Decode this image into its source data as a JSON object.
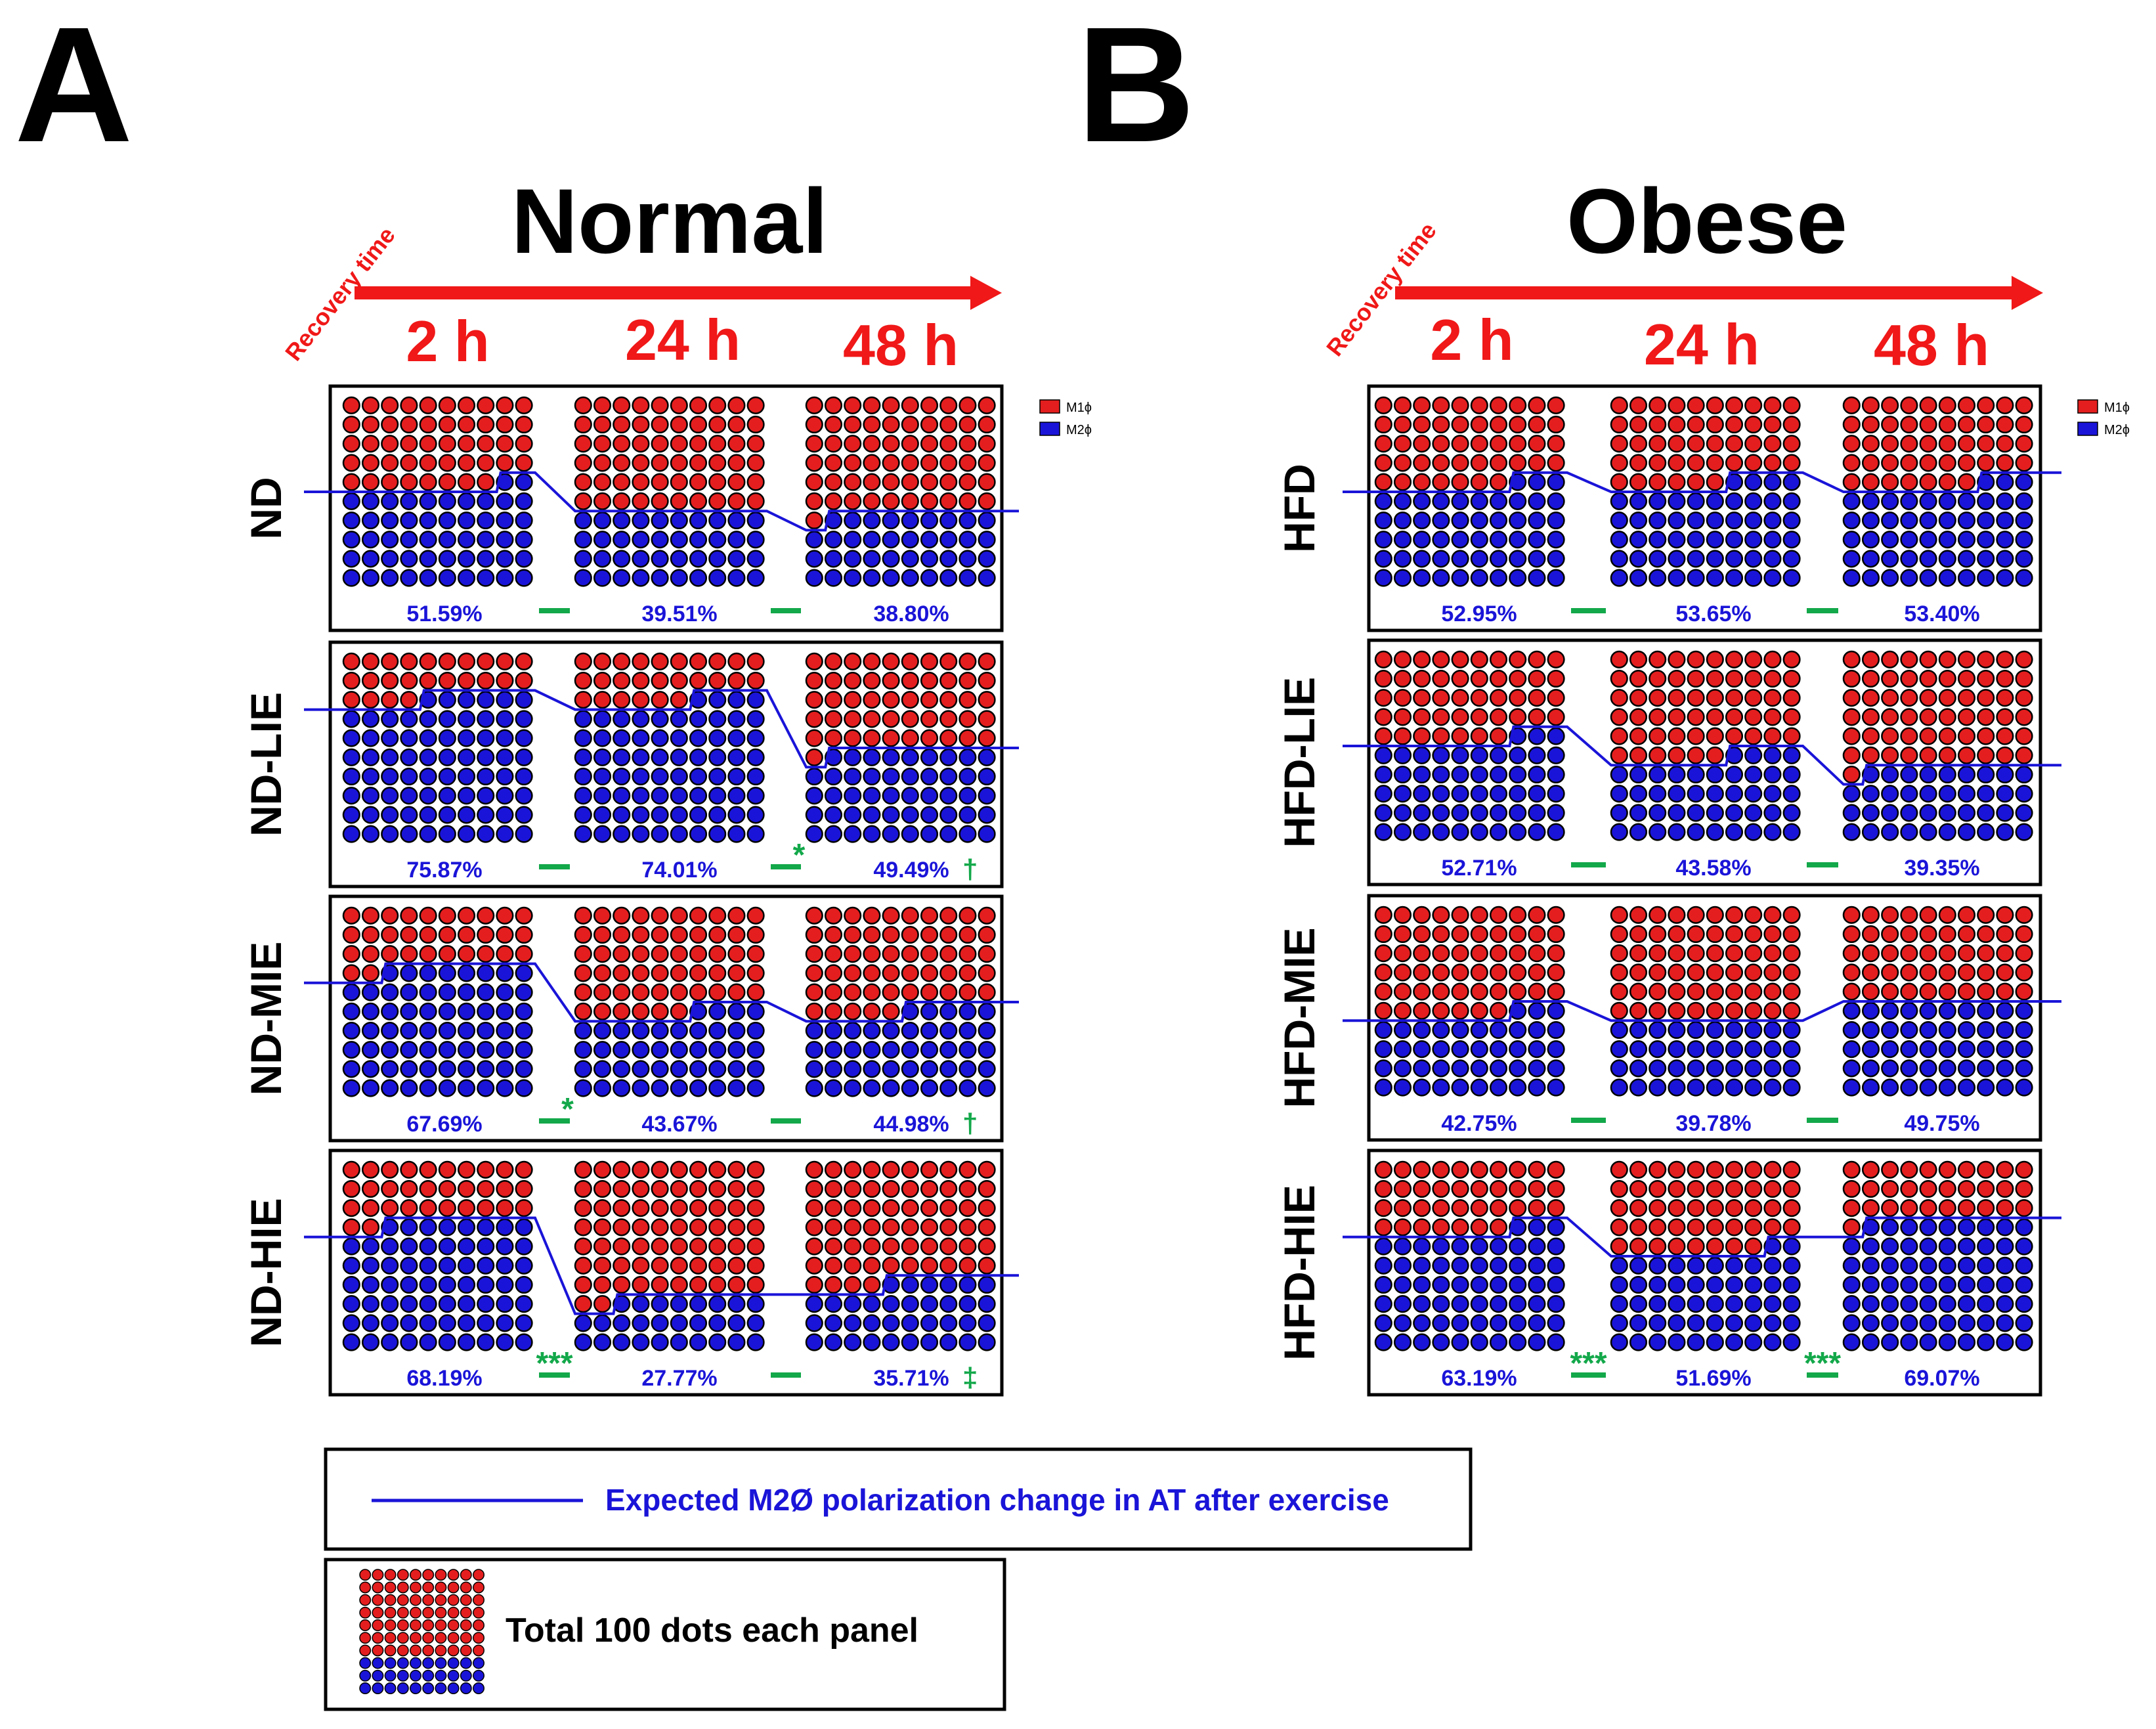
{
  "panel_letters": {
    "a": "A",
    "b": "B"
  },
  "recovery_label": "Recovery time",
  "colors": {
    "m1": "#e41e1e",
    "m2": "#1a14d8",
    "line": "#1a14d8",
    "sig": "#13a84a",
    "red_text": "#f01818",
    "pct_text": "#1a14d8"
  },
  "legend_small": {
    "m1": "M1ϕ",
    "m2": "M2ϕ"
  },
  "legend_line_label": "Expected M2Ø polarization change in AT after exercise",
  "legend_dots_label": "Total 100 dots each panel",
  "chart_data": [
    {
      "type": "waffle",
      "title": "Normal",
      "time_labels": [
        "2 h",
        "24 h",
        "48 h"
      ],
      "rows": [
        {
          "label": "ND",
          "values": [
            51.59,
            39.51,
            38.8
          ],
          "pct_labels": [
            "51.59%",
            "39.51%",
            "38.80%"
          ],
          "sig": [
            "",
            ""
          ],
          "suffix": [
            "",
            "",
            ""
          ]
        },
        {
          "label": "ND-LIE",
          "values": [
            75.87,
            74.01,
            49.49
          ],
          "pct_labels": [
            "75.87%",
            "74.01%",
            "49.49%"
          ],
          "sig": [
            "",
            "*"
          ],
          "suffix": [
            "",
            "",
            "†"
          ]
        },
        {
          "label": "ND-MIE",
          "values": [
            67.69,
            43.67,
            44.98
          ],
          "pct_labels": [
            "67.69%",
            "43.67%",
            "44.98%"
          ],
          "sig": [
            "*",
            ""
          ],
          "suffix": [
            "",
            "",
            "†"
          ]
        },
        {
          "label": "ND-HIE",
          "values": [
            68.19,
            27.77,
            35.71
          ],
          "pct_labels": [
            "68.19%",
            "27.77%",
            "35.71%"
          ],
          "sig": [
            "***",
            ""
          ],
          "suffix": [
            "",
            "",
            "‡"
          ]
        }
      ]
    },
    {
      "type": "waffle",
      "title": "Obese",
      "time_labels": [
        "2 h",
        "24 h",
        "48 h"
      ],
      "rows": [
        {
          "label": "HFD",
          "values": [
            52.95,
            53.65,
            53.4
          ],
          "pct_labels": [
            "52.95%",
            "53.65%",
            "53.40%"
          ],
          "sig": [
            "",
            ""
          ],
          "suffix": [
            "",
            "",
            ""
          ]
        },
        {
          "label": "HFD-LIE",
          "values": [
            52.71,
            43.58,
            39.35
          ],
          "pct_labels": [
            "52.71%",
            "43.58%",
            "39.35%"
          ],
          "sig": [
            "",
            ""
          ],
          "suffix": [
            "",
            "",
            ""
          ]
        },
        {
          "label": "HFD-MIE",
          "values": [
            42.75,
            39.78,
            49.75
          ],
          "pct_labels": [
            "42.75%",
            "39.78%",
            "49.75%"
          ],
          "sig": [
            "",
            ""
          ],
          "suffix": [
            "",
            "",
            ""
          ]
        },
        {
          "label": "HFD-HIE",
          "values": [
            63.19,
            51.69,
            69.07
          ],
          "pct_labels": [
            "63.19%",
            "51.69%",
            "69.07%"
          ],
          "sig": [
            "***",
            "***"
          ],
          "suffix": [
            "",
            "",
            ""
          ]
        }
      ]
    }
  ]
}
